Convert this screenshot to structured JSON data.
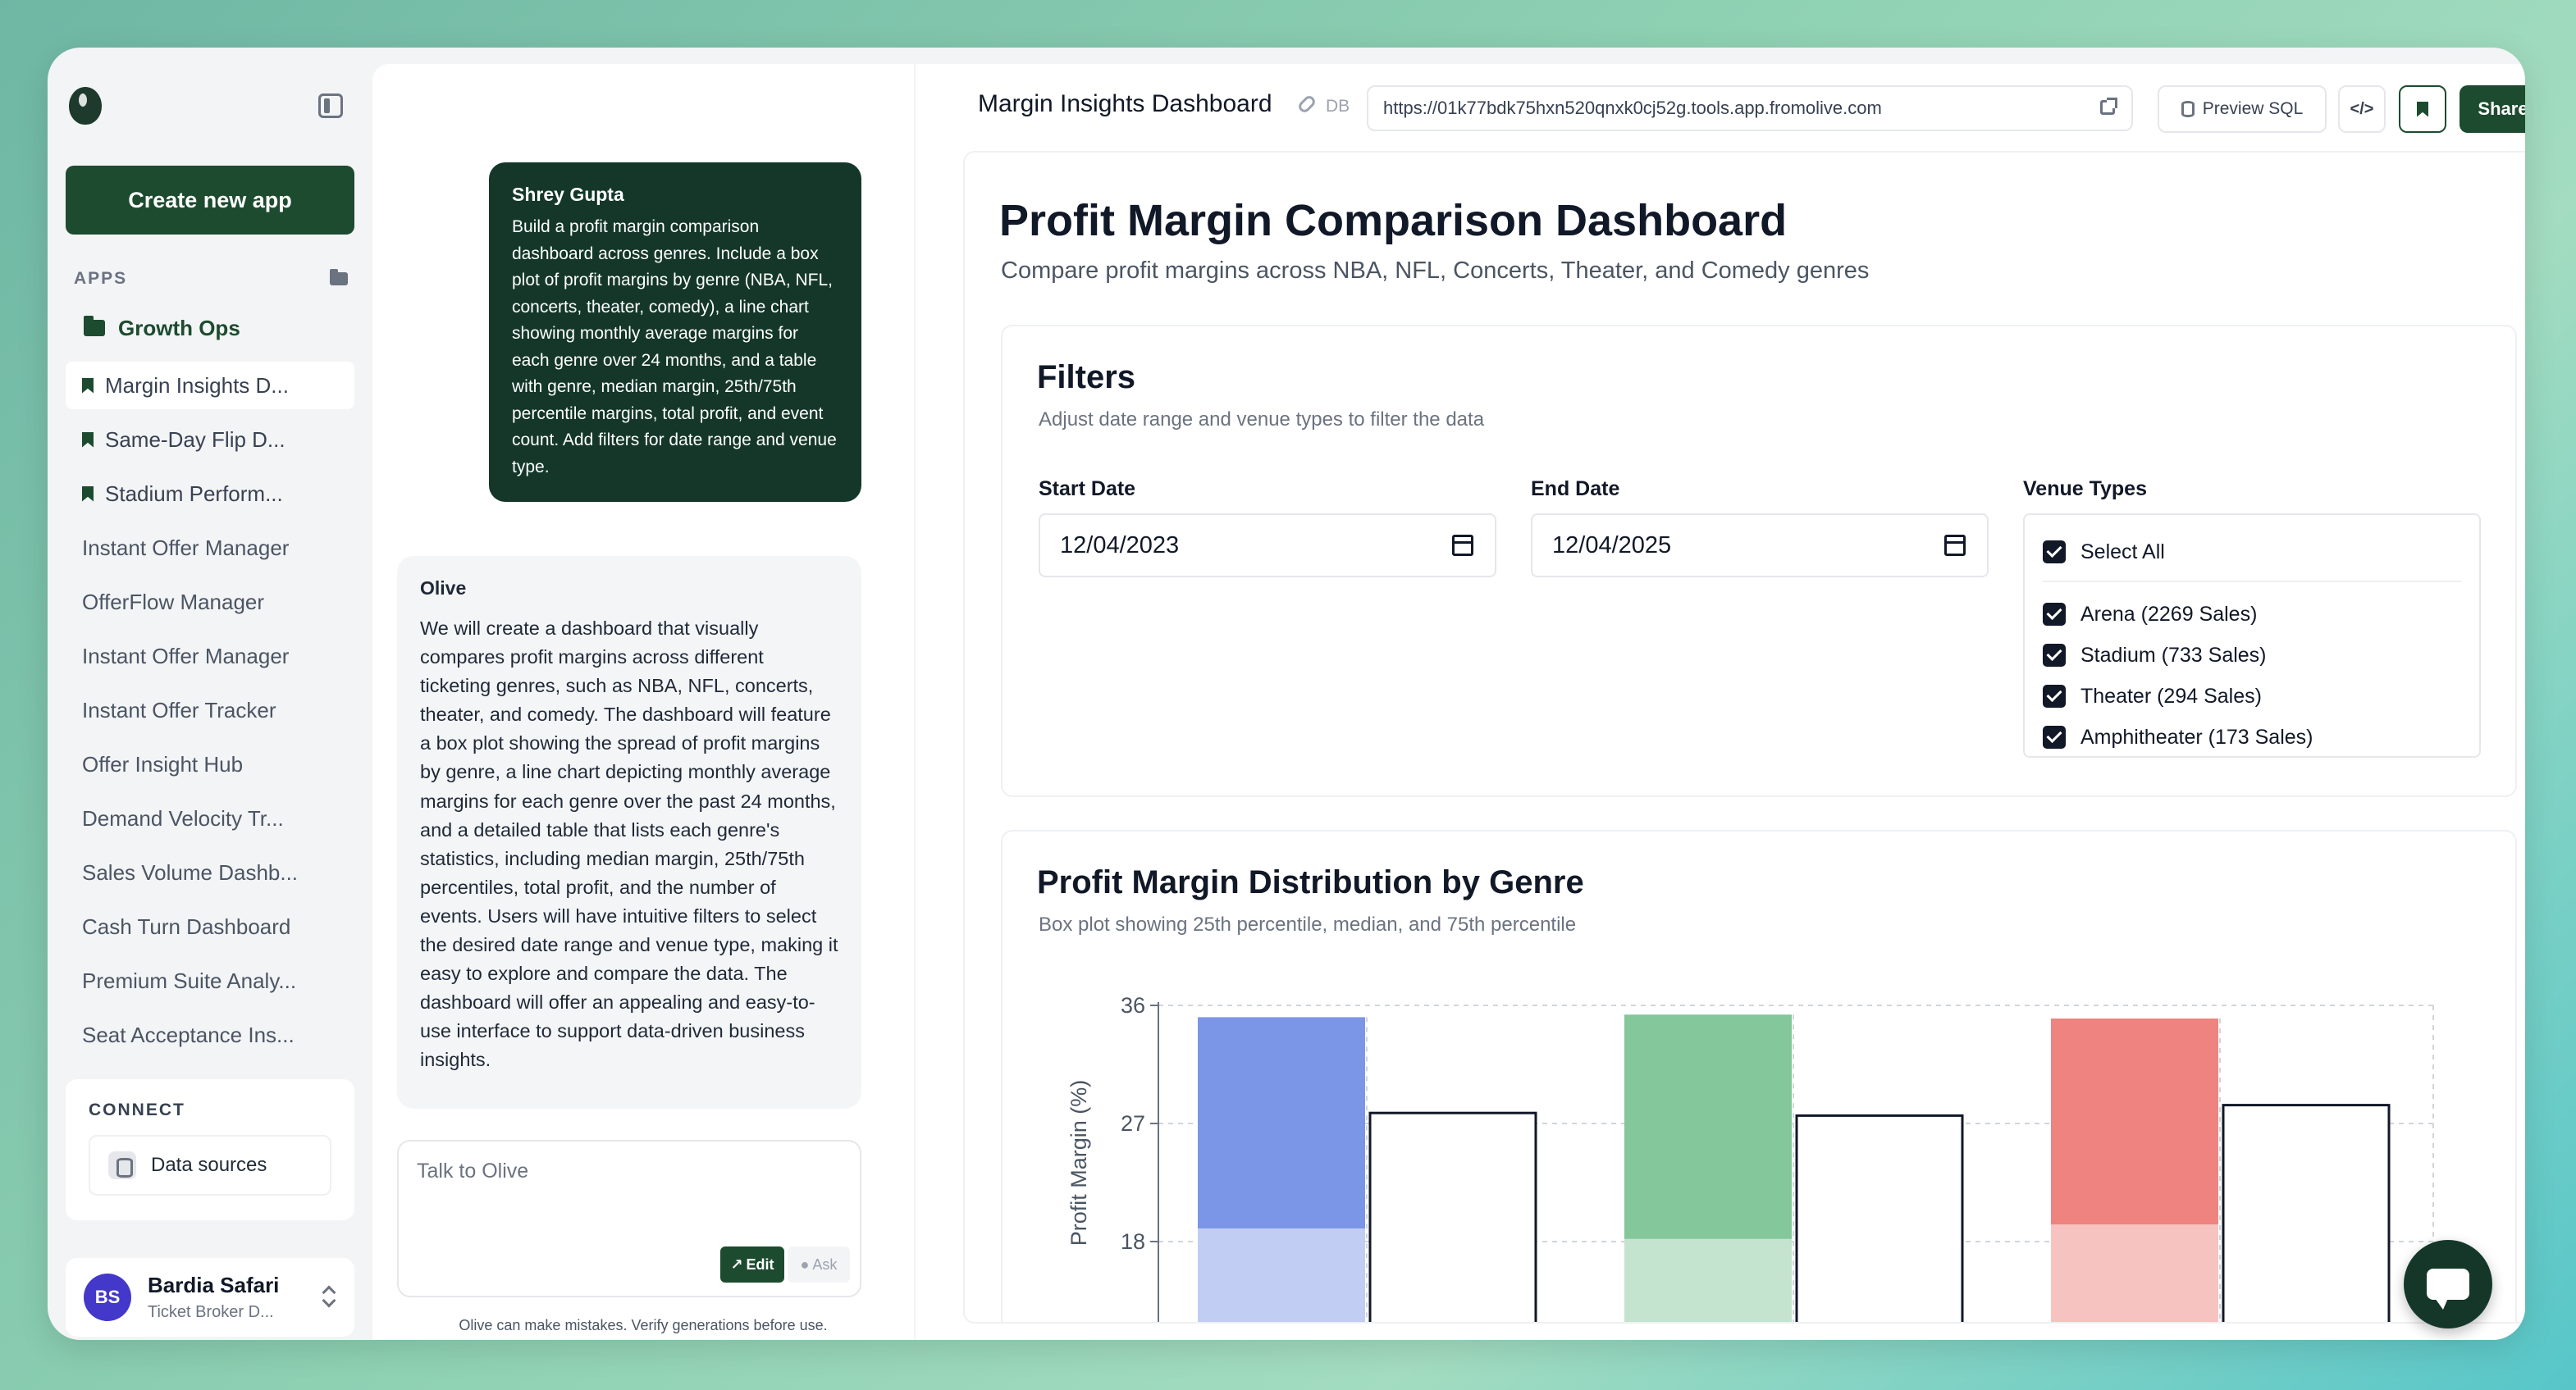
{
  "sidebar": {
    "create_label": "Create new app",
    "apps_label": "APPS",
    "group_label": "Growth Ops",
    "items": [
      {
        "label": "Margin Insights D...",
        "pinned": true,
        "active": true
      },
      {
        "label": "Same-Day Flip D...",
        "pinned": true,
        "active": false
      },
      {
        "label": "Stadium Perform...",
        "pinned": true,
        "active": false
      },
      {
        "label": "Instant Offer Manager",
        "pinned": false,
        "active": false
      },
      {
        "label": "OfferFlow Manager",
        "pinned": false,
        "active": false
      },
      {
        "label": "Instant Offer Manager",
        "pinned": false,
        "active": false
      },
      {
        "label": "Instant Offer Tracker",
        "pinned": false,
        "active": false
      },
      {
        "label": "Offer Insight Hub",
        "pinned": false,
        "active": false
      },
      {
        "label": "Demand Velocity Tr...",
        "pinned": false,
        "active": false
      },
      {
        "label": "Sales Volume Dashb...",
        "pinned": false,
        "active": false
      },
      {
        "label": "Cash Turn Dashboard",
        "pinned": false,
        "active": false
      },
      {
        "label": "Premium Suite Analy...",
        "pinned": false,
        "active": false
      },
      {
        "label": "Seat Acceptance Ins...",
        "pinned": false,
        "active": false
      }
    ],
    "connect_label": "CONNECT",
    "data_sources_label": "Data sources",
    "user": {
      "initials": "BS",
      "name": "Bardia Safari",
      "subtitle": "Ticket Broker D..."
    }
  },
  "chat": {
    "user_message": {
      "author": "Shrey Gupta",
      "text": "Build a profit margin comparison dashboard across genres. Include a box plot of profit margins by genre (NBA, NFL, concerts, theater, comedy), a line chart showing monthly average margins for each genre over 24 months, and a table with genre, median margin, 25th/75th percentile margins, total profit, and event count. Add filters for date range and venue type."
    },
    "assistant_message": {
      "author": "Olive",
      "text": "We will create a dashboard that visually compares profit margins across different ticketing genres, such as NBA, NFL, concerts, theater, and comedy. The dashboard will feature a box plot showing the spread of profit margins by genre, a line chart depicting monthly average margins for each genre over the past 24 months, and a detailed table that lists each genre's statistics, including median margin, 25th/75th percentiles, total profit, and the number of events. Users will have intuitive filters to select the desired date range and venue type, making it easy to explore and compare the data. The dashboard will offer an appealing and easy-to-use interface to support data-driven business insights."
    },
    "composer_placeholder": "Talk to Olive",
    "mode_edit": "Edit",
    "mode_ask": "Ask",
    "disclaimer": "Olive can make mistakes. Verify generations before use."
  },
  "topbar": {
    "app_title": "Margin Insights Dashboard",
    "db_tag": "DB",
    "url": "https://01k77bdk75hxn520qnxk0cj52g.tools.app.fromolive.com",
    "preview_sql": "Preview SQL",
    "code_label": "</>",
    "share": "Share"
  },
  "dashboard": {
    "title": "Profit Margin Comparison Dashboard",
    "subtitle": "Compare profit margins across NBA, NFL, Concerts, Theater, and Comedy genres",
    "filters": {
      "title": "Filters",
      "subtitle": "Adjust date range and venue types to filter the data",
      "start_label": "Start Date",
      "start_value": "12/04/2023",
      "end_label": "End Date",
      "end_value": "12/04/2025",
      "venue_label": "Venue Types",
      "select_all": "Select All",
      "venues": [
        "Arena (2269 Sales)",
        "Stadium (733 Sales)",
        "Theater (294 Sales)",
        "Amphitheater (173 Sales)"
      ]
    },
    "chart_card": {
      "title": "Profit Margin Distribution by Genre",
      "subtitle": "Box plot showing 25th percentile, median, and 75th percentile"
    }
  },
  "chart_data": {
    "type": "bar",
    "title": "Profit Margin Distribution by Genre",
    "ylabel": "Profit Margin (%)",
    "xlabel": "",
    "y_ticks": [
      18,
      27,
      36
    ],
    "ylim": [
      13,
      36
    ],
    "grid": true,
    "groups": [
      {
        "color": "#7b96e6",
        "light": "#c2cdf4",
        "p75": 35.1,
        "median": 19.0,
        "outline_top": 27.8
      },
      {
        "color": "#83c79a",
        "light": "#c4e4cf",
        "p75": 35.3,
        "median": 18.2,
        "outline_top": 27.6
      },
      {
        "color": "#ee837f",
        "light": "#f6c3c1",
        "p75": 35.0,
        "median": 19.3,
        "outline_top": 28.4
      }
    ]
  }
}
